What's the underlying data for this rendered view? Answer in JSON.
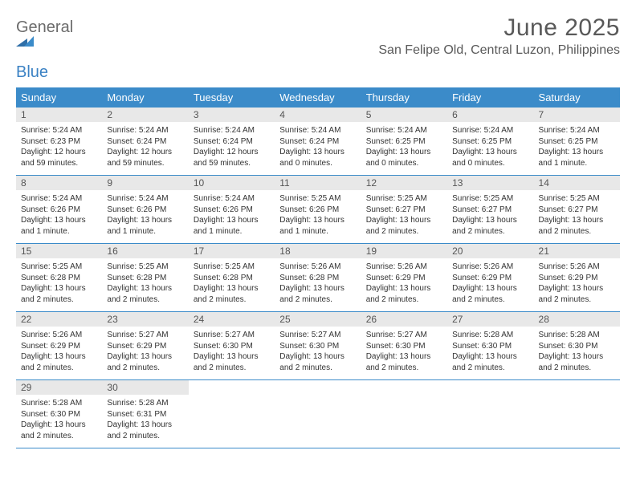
{
  "logo": {
    "line1": "General",
    "line2": "Blue"
  },
  "title": "June 2025",
  "location": "San Felipe Old, Central Luzon, Philippines",
  "colors": {
    "header_bg": "#3b8bc9",
    "header_text": "#ffffff",
    "daynum_bg": "#e8e8e8",
    "border": "#3b8bc9",
    "body_text": "#333333",
    "title_text": "#595959"
  },
  "day_names": [
    "Sunday",
    "Monday",
    "Tuesday",
    "Wednesday",
    "Thursday",
    "Friday",
    "Saturday"
  ],
  "weeks": [
    [
      {
        "n": "1",
        "sr": "Sunrise: 5:24 AM",
        "ss": "Sunset: 6:23 PM",
        "d1": "Daylight: 12 hours",
        "d2": "and 59 minutes."
      },
      {
        "n": "2",
        "sr": "Sunrise: 5:24 AM",
        "ss": "Sunset: 6:24 PM",
        "d1": "Daylight: 12 hours",
        "d2": "and 59 minutes."
      },
      {
        "n": "3",
        "sr": "Sunrise: 5:24 AM",
        "ss": "Sunset: 6:24 PM",
        "d1": "Daylight: 12 hours",
        "d2": "and 59 minutes."
      },
      {
        "n": "4",
        "sr": "Sunrise: 5:24 AM",
        "ss": "Sunset: 6:24 PM",
        "d1": "Daylight: 13 hours",
        "d2": "and 0 minutes."
      },
      {
        "n": "5",
        "sr": "Sunrise: 5:24 AM",
        "ss": "Sunset: 6:25 PM",
        "d1": "Daylight: 13 hours",
        "d2": "and 0 minutes."
      },
      {
        "n": "6",
        "sr": "Sunrise: 5:24 AM",
        "ss": "Sunset: 6:25 PM",
        "d1": "Daylight: 13 hours",
        "d2": "and 0 minutes."
      },
      {
        "n": "7",
        "sr": "Sunrise: 5:24 AM",
        "ss": "Sunset: 6:25 PM",
        "d1": "Daylight: 13 hours",
        "d2": "and 1 minute."
      }
    ],
    [
      {
        "n": "8",
        "sr": "Sunrise: 5:24 AM",
        "ss": "Sunset: 6:26 PM",
        "d1": "Daylight: 13 hours",
        "d2": "and 1 minute."
      },
      {
        "n": "9",
        "sr": "Sunrise: 5:24 AM",
        "ss": "Sunset: 6:26 PM",
        "d1": "Daylight: 13 hours",
        "d2": "and 1 minute."
      },
      {
        "n": "10",
        "sr": "Sunrise: 5:24 AM",
        "ss": "Sunset: 6:26 PM",
        "d1": "Daylight: 13 hours",
        "d2": "and 1 minute."
      },
      {
        "n": "11",
        "sr": "Sunrise: 5:25 AM",
        "ss": "Sunset: 6:26 PM",
        "d1": "Daylight: 13 hours",
        "d2": "and 1 minute."
      },
      {
        "n": "12",
        "sr": "Sunrise: 5:25 AM",
        "ss": "Sunset: 6:27 PM",
        "d1": "Daylight: 13 hours",
        "d2": "and 2 minutes."
      },
      {
        "n": "13",
        "sr": "Sunrise: 5:25 AM",
        "ss": "Sunset: 6:27 PM",
        "d1": "Daylight: 13 hours",
        "d2": "and 2 minutes."
      },
      {
        "n": "14",
        "sr": "Sunrise: 5:25 AM",
        "ss": "Sunset: 6:27 PM",
        "d1": "Daylight: 13 hours",
        "d2": "and 2 minutes."
      }
    ],
    [
      {
        "n": "15",
        "sr": "Sunrise: 5:25 AM",
        "ss": "Sunset: 6:28 PM",
        "d1": "Daylight: 13 hours",
        "d2": "and 2 minutes."
      },
      {
        "n": "16",
        "sr": "Sunrise: 5:25 AM",
        "ss": "Sunset: 6:28 PM",
        "d1": "Daylight: 13 hours",
        "d2": "and 2 minutes."
      },
      {
        "n": "17",
        "sr": "Sunrise: 5:25 AM",
        "ss": "Sunset: 6:28 PM",
        "d1": "Daylight: 13 hours",
        "d2": "and 2 minutes."
      },
      {
        "n": "18",
        "sr": "Sunrise: 5:26 AM",
        "ss": "Sunset: 6:28 PM",
        "d1": "Daylight: 13 hours",
        "d2": "and 2 minutes."
      },
      {
        "n": "19",
        "sr": "Sunrise: 5:26 AM",
        "ss": "Sunset: 6:29 PM",
        "d1": "Daylight: 13 hours",
        "d2": "and 2 minutes."
      },
      {
        "n": "20",
        "sr": "Sunrise: 5:26 AM",
        "ss": "Sunset: 6:29 PM",
        "d1": "Daylight: 13 hours",
        "d2": "and 2 minutes."
      },
      {
        "n": "21",
        "sr": "Sunrise: 5:26 AM",
        "ss": "Sunset: 6:29 PM",
        "d1": "Daylight: 13 hours",
        "d2": "and 2 minutes."
      }
    ],
    [
      {
        "n": "22",
        "sr": "Sunrise: 5:26 AM",
        "ss": "Sunset: 6:29 PM",
        "d1": "Daylight: 13 hours",
        "d2": "and 2 minutes."
      },
      {
        "n": "23",
        "sr": "Sunrise: 5:27 AM",
        "ss": "Sunset: 6:29 PM",
        "d1": "Daylight: 13 hours",
        "d2": "and 2 minutes."
      },
      {
        "n": "24",
        "sr": "Sunrise: 5:27 AM",
        "ss": "Sunset: 6:30 PM",
        "d1": "Daylight: 13 hours",
        "d2": "and 2 minutes."
      },
      {
        "n": "25",
        "sr": "Sunrise: 5:27 AM",
        "ss": "Sunset: 6:30 PM",
        "d1": "Daylight: 13 hours",
        "d2": "and 2 minutes."
      },
      {
        "n": "26",
        "sr": "Sunrise: 5:27 AM",
        "ss": "Sunset: 6:30 PM",
        "d1": "Daylight: 13 hours",
        "d2": "and 2 minutes."
      },
      {
        "n": "27",
        "sr": "Sunrise: 5:28 AM",
        "ss": "Sunset: 6:30 PM",
        "d1": "Daylight: 13 hours",
        "d2": "and 2 minutes."
      },
      {
        "n": "28",
        "sr": "Sunrise: 5:28 AM",
        "ss": "Sunset: 6:30 PM",
        "d1": "Daylight: 13 hours",
        "d2": "and 2 minutes."
      }
    ],
    [
      {
        "n": "29",
        "sr": "Sunrise: 5:28 AM",
        "ss": "Sunset: 6:30 PM",
        "d1": "Daylight: 13 hours",
        "d2": "and 2 minutes."
      },
      {
        "n": "30",
        "sr": "Sunrise: 5:28 AM",
        "ss": "Sunset: 6:31 PM",
        "d1": "Daylight: 13 hours",
        "d2": "and 2 minutes."
      },
      null,
      null,
      null,
      null,
      null
    ]
  ]
}
